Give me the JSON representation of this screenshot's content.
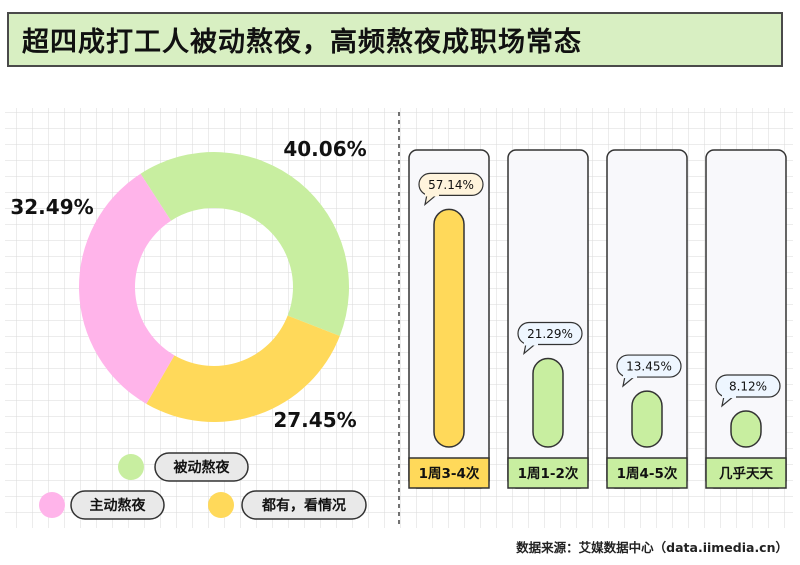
{
  "title": "超四成打工人被动熬夜，高频熬夜成职场常态",
  "source": "数据来源：艾媒数据中心（data.iimedia.cn）",
  "colors": {
    "green": "#c8eea0",
    "yellow": "#ffd95a",
    "pink": "#ffb4ea",
    "panel_border": "#333333",
    "bar_panel_bg": "#f8f8fb"
  },
  "chart_data": [
    {
      "type": "pie",
      "donut": true,
      "categories": [
        "被动熬夜",
        "都有，看情况",
        "主动熬夜"
      ],
      "values": [
        40.06,
        27.45,
        32.49
      ],
      "labels": [
        "40.06%",
        "27.45%",
        "32.49%"
      ],
      "colors": [
        "#c8eea0",
        "#ffd95a",
        "#ffb4ea"
      ],
      "legend": [
        {
          "name": "被动熬夜",
          "color": "#c8eea0"
        },
        {
          "name": "主动熬夜",
          "color": "#ffb4ea"
        },
        {
          "name": "都有，看情况",
          "color": "#ffd95a"
        }
      ],
      "legend_position": "bottom"
    },
    {
      "type": "bar",
      "categories": [
        "1周3-4次",
        "1周1-2次",
        "1周4-5次",
        "几乎天天"
      ],
      "values": [
        57.14,
        21.29,
        13.45,
        8.12
      ],
      "labels": [
        "57.14%",
        "21.29%",
        "13.45%",
        "8.12%"
      ],
      "ylim": [
        0,
        100
      ],
      "highlight_index": 0
    }
  ]
}
